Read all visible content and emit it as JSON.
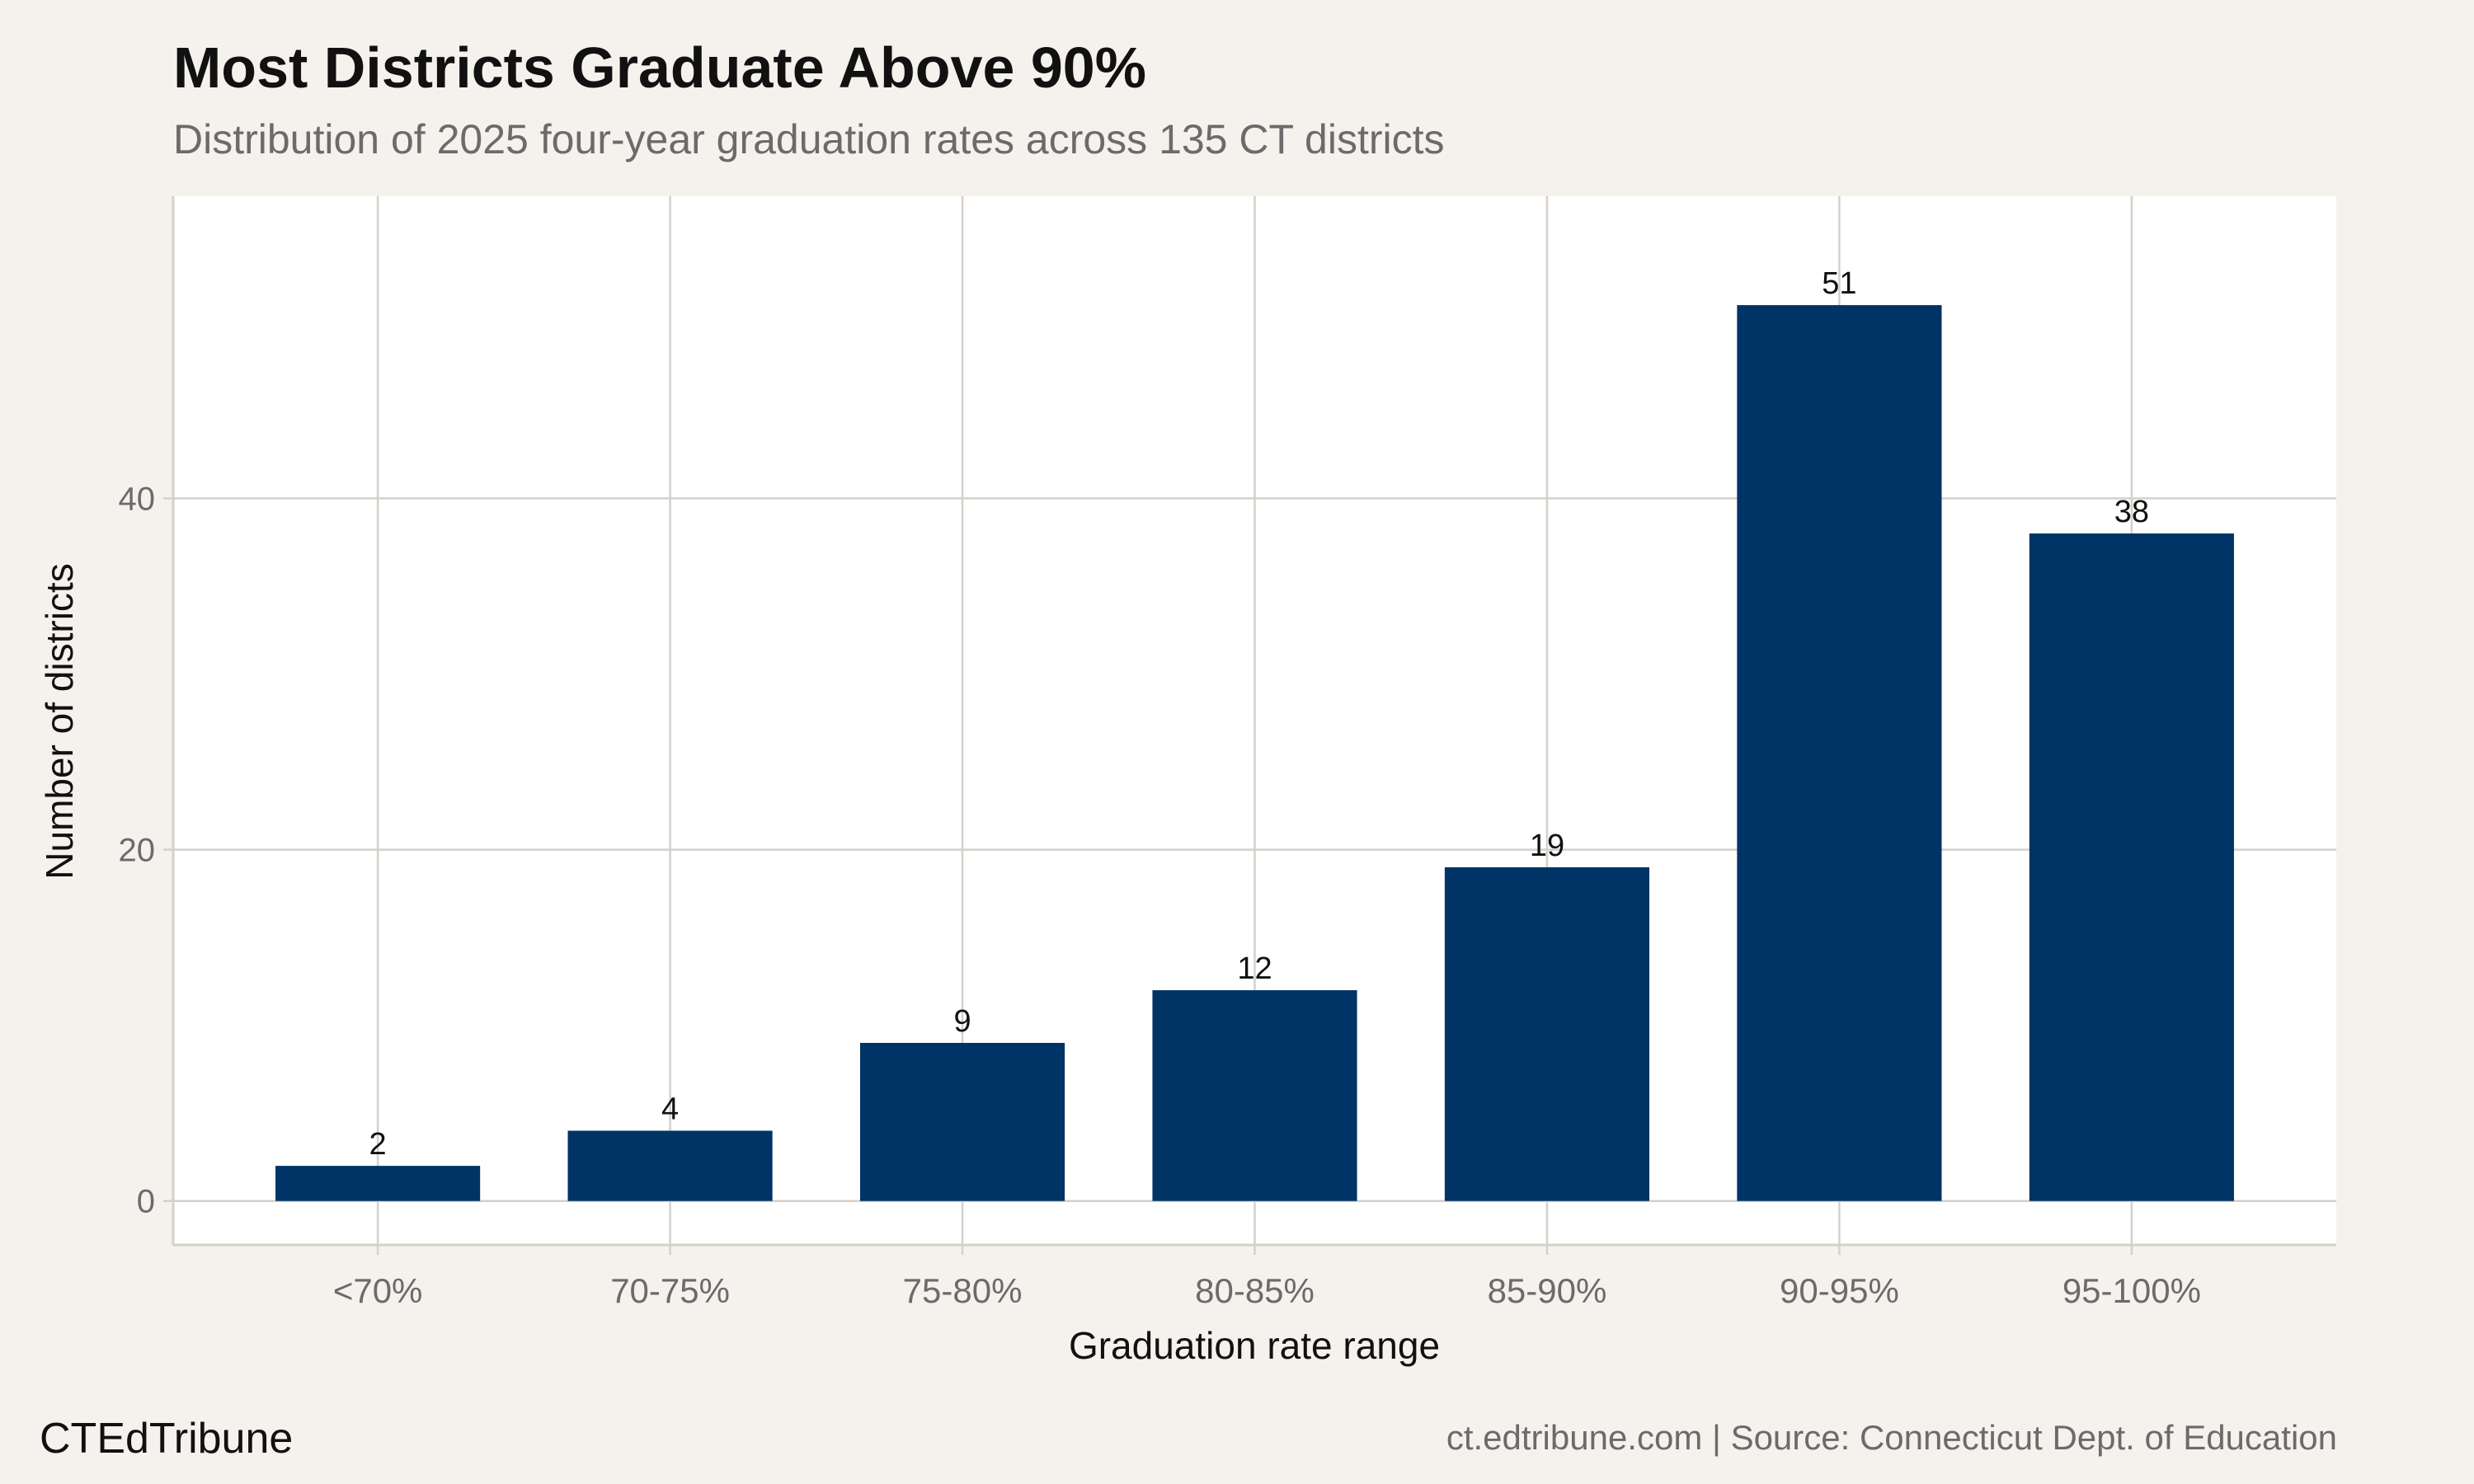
{
  "header": {
    "title": "Most Districts Graduate Above 90%",
    "subtitle": "Distribution of 2025 four-year graduation rates across 135 CT districts"
  },
  "footer": {
    "brand": "CTEdTribune",
    "source": "ct.edtribune.com | Source: Connecticut Dept. of Education"
  },
  "colors": {
    "bar": "#003366",
    "grid": "#d4d0ca",
    "panel": "#ffffff",
    "background": "#f5f2ed"
  },
  "chart_data": {
    "type": "bar",
    "title": "Most Districts Graduate Above 90%",
    "subtitle": "Distribution of 2025 four-year graduation rates across 135 CT districts",
    "xlabel": "Graduation rate range",
    "ylabel": "Number of districts",
    "categories": [
      "<70%",
      "70-75%",
      "75-80%",
      "80-85%",
      "85-90%",
      "90-95%",
      "95-100%"
    ],
    "values": [
      2,
      4,
      9,
      12,
      19,
      51,
      38
    ],
    "ylim": [
      -2.5,
      57.2
    ],
    "yticks": [
      0,
      20,
      40
    ],
    "grid": true,
    "legend": "none",
    "data_labels": true
  }
}
